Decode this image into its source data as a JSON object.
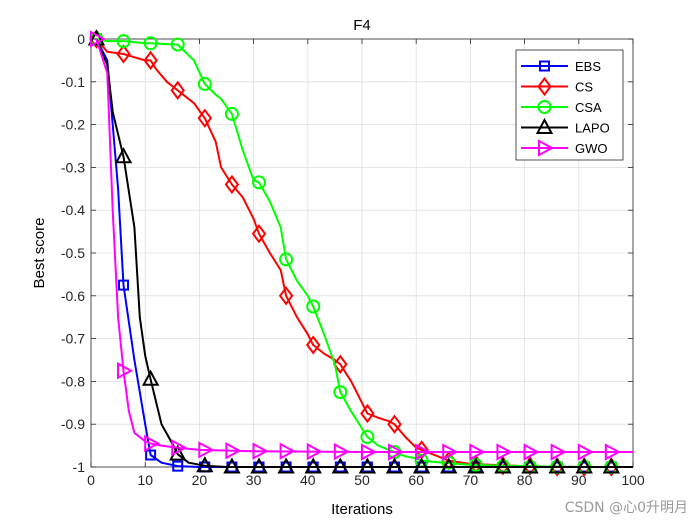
{
  "chart_data": {
    "type": "line",
    "title": "F4",
    "xlabel": "Iterations",
    "ylabel": "Best score",
    "xlim": [
      0,
      100
    ],
    "ylim": [
      -1,
      0
    ],
    "xticks": [
      0,
      10,
      20,
      30,
      40,
      50,
      60,
      70,
      80,
      90,
      100
    ],
    "yticks": [
      0,
      -0.1,
      -0.2,
      -0.3,
      -0.4,
      -0.5,
      -0.6,
      -0.7,
      -0.8,
      -0.9,
      -1
    ],
    "grid": true,
    "legend_position": "top-right",
    "series": [
      {
        "name": "EBS",
        "color": "#0000ff",
        "marker": "square",
        "x": [
          1,
          3,
          5,
          6,
          8,
          10,
          11,
          13,
          16,
          20,
          25,
          30,
          40,
          50,
          60,
          70,
          80,
          90,
          100
        ],
        "y": [
          0,
          -0.05,
          -0.35,
          -0.575,
          -0.75,
          -0.9,
          -0.972,
          -0.99,
          -0.998,
          -1,
          -1,
          -1,
          -1,
          -1,
          -1,
          -1,
          -1,
          -1,
          -1
        ],
        "marker_x": [
          1,
          6,
          11,
          16,
          21,
          26,
          31,
          36,
          41,
          46,
          51,
          56,
          61,
          66,
          71,
          76,
          81,
          86,
          91,
          96
        ],
        "marker_y": [
          0,
          -0.575,
          -0.972,
          -0.998,
          -1,
          -1,
          -1,
          -1,
          -1,
          -1,
          -1,
          -1,
          -1,
          -1,
          -1,
          -1,
          -1,
          -1,
          -1,
          -1
        ]
      },
      {
        "name": "CS",
        "color": "#ff0000",
        "marker": "diamond",
        "x": [
          1,
          3,
          6,
          10,
          11,
          12,
          14,
          16,
          19,
          21,
          23,
          24,
          26,
          28,
          30,
          31,
          33,
          35,
          36,
          38,
          40,
          41,
          43,
          45,
          46,
          48,
          50,
          51,
          53,
          55,
          56,
          58,
          60,
          61,
          63,
          66,
          70,
          80,
          90,
          100
        ],
        "y": [
          0,
          -0.03,
          -0.035,
          -0.05,
          -0.05,
          -0.07,
          -0.1,
          -0.12,
          -0.15,
          -0.185,
          -0.24,
          -0.3,
          -0.34,
          -0.37,
          -0.42,
          -0.455,
          -0.5,
          -0.54,
          -0.6,
          -0.65,
          -0.69,
          -0.715,
          -0.735,
          -0.75,
          -0.76,
          -0.8,
          -0.85,
          -0.875,
          -0.885,
          -0.893,
          -0.9,
          -0.93,
          -0.955,
          -0.96,
          -0.97,
          -0.985,
          -0.993,
          -0.998,
          -1,
          -1
        ],
        "marker_x": [
          1,
          6,
          11,
          16,
          21,
          26,
          31,
          36,
          41,
          46,
          51,
          56,
          61,
          66,
          71,
          76,
          81,
          86,
          91,
          96
        ],
        "marker_y": [
          0,
          -0.035,
          -0.05,
          -0.12,
          -0.185,
          -0.34,
          -0.455,
          -0.6,
          -0.715,
          -0.76,
          -0.875,
          -0.9,
          -0.96,
          -0.985,
          -0.993,
          -0.997,
          -0.998,
          -1,
          -1,
          -1
        ]
      },
      {
        "name": "CSA",
        "color": "#00ff00",
        "marker": "circle",
        "x": [
          1,
          3,
          6,
          10,
          11,
          14,
          16,
          19,
          21,
          23,
          24,
          26,
          28,
          30,
          31,
          33,
          35,
          36,
          38,
          40,
          41,
          43,
          45,
          46,
          48,
          50,
          51,
          53,
          55,
          56,
          58,
          60,
          61,
          65,
          70,
          80,
          90,
          100
        ],
        "y": [
          0,
          -0.005,
          -0.005,
          -0.01,
          -0.01,
          -0.012,
          -0.013,
          -0.05,
          -0.105,
          -0.13,
          -0.14,
          -0.175,
          -0.26,
          -0.33,
          -0.335,
          -0.38,
          -0.44,
          -0.515,
          -0.565,
          -0.6,
          -0.625,
          -0.69,
          -0.76,
          -0.825,
          -0.87,
          -0.91,
          -0.93,
          -0.95,
          -0.96,
          -0.965,
          -0.975,
          -0.98,
          -0.985,
          -0.99,
          -0.995,
          -0.998,
          -1,
          -1
        ],
        "marker_x": [
          1,
          6,
          11,
          16,
          21,
          26,
          31,
          36,
          41,
          46,
          51,
          56,
          61,
          66,
          71,
          76,
          81,
          86,
          91,
          96
        ],
        "marker_y": [
          0,
          -0.005,
          -0.01,
          -0.013,
          -0.105,
          -0.175,
          -0.335,
          -0.515,
          -0.625,
          -0.825,
          -0.93,
          -0.965,
          -0.985,
          -0.99,
          -0.995,
          -0.998,
          -1,
          -1,
          -1,
          -1
        ]
      },
      {
        "name": "LAPO",
        "color": "#000000",
        "marker": "triangle-up",
        "x": [
          1,
          3,
          4,
          6,
          8,
          9,
          10,
          11,
          13,
          15,
          16,
          18,
          21,
          25,
          30,
          40,
          50,
          60,
          70,
          80,
          90,
          100
        ],
        "y": [
          0,
          -0.06,
          -0.17,
          -0.275,
          -0.44,
          -0.65,
          -0.74,
          -0.795,
          -0.9,
          -0.945,
          -0.97,
          -0.99,
          -0.997,
          -1,
          -1,
          -1,
          -1,
          -1,
          -1,
          -1,
          -1,
          -1
        ],
        "marker_x": [
          1,
          6,
          11,
          16,
          21,
          26,
          31,
          36,
          41,
          46,
          51,
          56,
          61,
          66,
          71,
          76,
          81,
          86,
          91,
          96
        ],
        "marker_y": [
          0,
          -0.275,
          -0.795,
          -0.97,
          -0.997,
          -1,
          -1,
          -1,
          -1,
          -1,
          -1,
          -1,
          -1,
          -1,
          -1,
          -1,
          -1,
          -1,
          -1,
          -1
        ]
      },
      {
        "name": "GWO",
        "color": "#ff00ff",
        "marker": "triangle-right",
        "x": [
          1,
          3,
          4,
          5,
          6,
          7,
          8,
          10,
          11,
          13,
          16,
          20,
          30,
          40,
          50,
          60,
          70,
          80,
          90,
          100
        ],
        "y": [
          0,
          -0.08,
          -0.4,
          -0.65,
          -0.775,
          -0.87,
          -0.92,
          -0.94,
          -0.945,
          -0.95,
          -0.955,
          -0.96,
          -0.963,
          -0.964,
          -0.965,
          -0.965,
          -0.965,
          -0.965,
          -0.965,
          -0.965
        ],
        "marker_x": [
          1,
          6,
          11,
          16,
          21,
          26,
          31,
          36,
          41,
          46,
          51,
          56,
          61,
          66,
          71,
          76,
          81,
          86,
          91,
          96
        ],
        "marker_y": [
          0,
          -0.775,
          -0.945,
          -0.955,
          -0.96,
          -0.962,
          -0.963,
          -0.963,
          -0.964,
          -0.964,
          -0.965,
          -0.965,
          -0.965,
          -0.965,
          -0.965,
          -0.965,
          -0.965,
          -0.965,
          -0.965,
          -0.965
        ]
      }
    ]
  },
  "watermark": "CSDN @心0升明月"
}
